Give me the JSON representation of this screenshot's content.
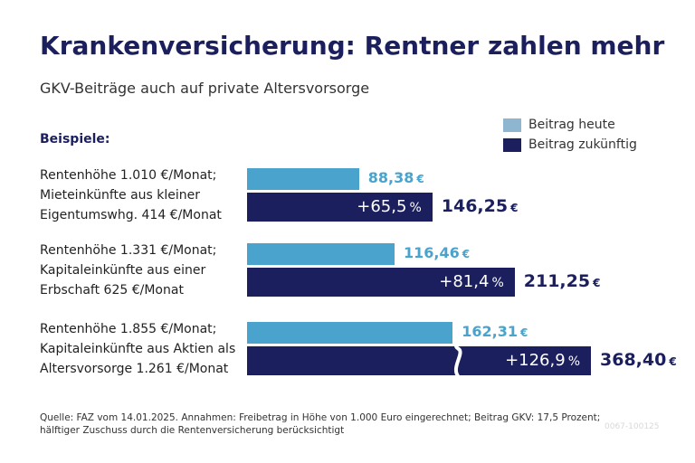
{
  "header": {
    "title": "Krankenversicherung: Rentner zahlen mehr",
    "subtitle": "GKV-Beiträge auch auf private Altersvorsorge"
  },
  "section_label": "Beispiele:",
  "legend": {
    "today": "Beitrag heute",
    "future": "Beitrag zukünftig"
  },
  "colors": {
    "today": "#4aa3cc",
    "future": "#1b1f5e"
  },
  "currency_unit": "€",
  "percent_unit": "%",
  "chart_data": {
    "type": "bar",
    "orientation": "horizontal",
    "series": [
      {
        "name": "Beitrag heute",
        "values": [
          88.38,
          116.46,
          162.31
        ]
      },
      {
        "name": "Beitrag zukünftig",
        "values": [
          146.25,
          211.25,
          368.4
        ]
      }
    ],
    "categories": [
      {
        "lines": [
          "Rentenhöhe 1.010 €/Monat;",
          "Mieteinkünfte aus kleiner",
          "Eigentumswhg. 414 €/Monat"
        ],
        "today_label": "88,38",
        "future_label": "146,25",
        "change_label": "+65,5",
        "axis_break": false
      },
      {
        "lines": [
          "Rentenhöhe 1.331 €/Monat;",
          "Kapitaleinkünfte aus einer",
          "Erbschaft 625 €/Monat"
        ],
        "today_label": "116,46",
        "future_label": "211,25",
        "change_label": "+81,4",
        "axis_break": false
      },
      {
        "lines": [
          "Rentenhöhe 1.855 €/Monat;",
          "Kapitaleinkünfte aus Aktien als",
          "Altersvorsorge 1.261 €/Monat"
        ],
        "today_label": "162,31",
        "future_label": "368,40",
        "change_label": "+126,9",
        "axis_break": true
      }
    ]
  },
  "footer": {
    "source_line1": "Quelle: FAZ vom 14.01.2025. Annahmen: Freibetrag in Höhe von 1.000 Euro eingerechnet; Beitrag GKV: 17,5 Prozent;",
    "source_line2": "hälftiger Zuschuss durch die Rentenversicherung berücksichtigt",
    "code": "0067-100125"
  }
}
